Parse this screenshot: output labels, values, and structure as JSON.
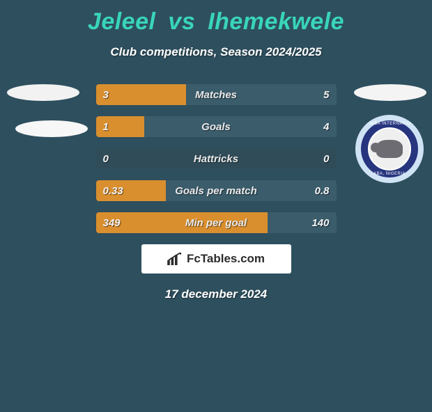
{
  "title": {
    "player1": "Jeleel",
    "vs": "vs",
    "player2": "Ihemekwele",
    "color": "#39d5b9"
  },
  "subtitle": "Club competitions, Season 2024/2025",
  "date": "17 december 2024",
  "brand": "FcTables.com",
  "colors": {
    "background": "#2e4f5e",
    "leftFill": "#da8f2e",
    "rightFill": "#3a5c6b",
    "rowBase": "#304c59",
    "valueText": "#f4f4f4",
    "labelText": "#eaeaea",
    "textShadow": "rgba(0,0,0,0.55)"
  },
  "layout": {
    "barWidthPx": 345,
    "barHeightPx": 30,
    "barGapPx": 16,
    "barRadiusPx": 4
  },
  "bars": [
    {
      "label": "Matches",
      "left": "3",
      "right": "5",
      "leftPct": 37.5,
      "rightPct": 62.5
    },
    {
      "label": "Goals",
      "left": "1",
      "right": "4",
      "leftPct": 20.0,
      "rightPct": 80.0
    },
    {
      "label": "Hattricks",
      "left": "0",
      "right": "0",
      "leftPct": 0.0,
      "rightPct": 0.0
    },
    {
      "label": "Goals per match",
      "left": "0.33",
      "right": "0.8",
      "leftPct": 29.2,
      "rightPct": 70.8
    },
    {
      "label": "Min per goal",
      "left": "349",
      "right": "140",
      "leftPct": 71.4,
      "rightPct": 28.6
    }
  ],
  "crest": {
    "ring_color": "#27357f",
    "outer_bg": "#cfe3f4",
    "inner_bg": "#efefef",
    "top_text": "ENYIMBA INTERNATIONAL",
    "bottom_text": "ABA, NIGERIA"
  }
}
